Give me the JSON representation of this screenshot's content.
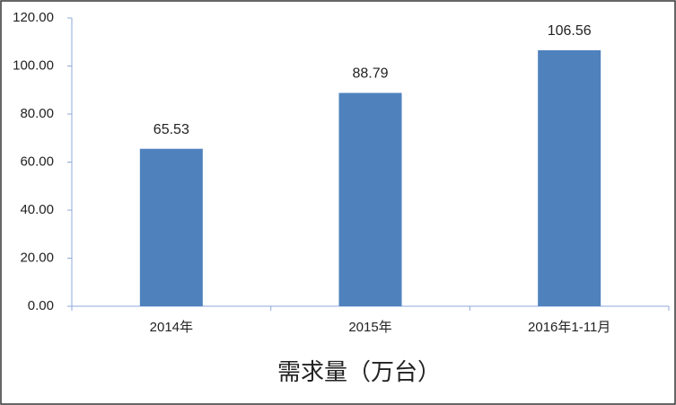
{
  "chart_data": {
    "type": "bar",
    "x_label": "需求量（万台）",
    "categories": [
      "2014年",
      "2015年",
      "2016年1-11月"
    ],
    "values": [
      65.53,
      88.79,
      106.56
    ],
    "color": "#4f81bd",
    "ylim": [
      0,
      120
    ],
    "yticks": [
      {
        "value": 0,
        "label": "0.00"
      },
      {
        "value": 20,
        "label": "20.00"
      },
      {
        "value": 40,
        "label": "40.00"
      },
      {
        "value": 60,
        "label": "60.00"
      },
      {
        "value": 80,
        "label": "80.00"
      },
      {
        "value": 100,
        "label": "100.00"
      },
      {
        "value": 120,
        "label": "120.00"
      }
    ],
    "grid": false
  }
}
